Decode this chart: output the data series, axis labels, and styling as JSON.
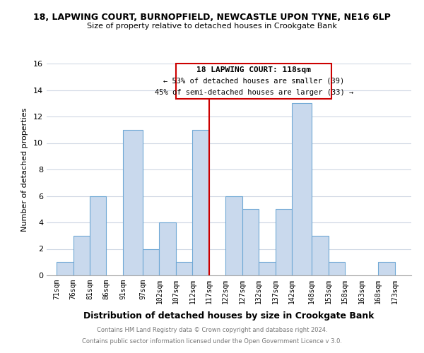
{
  "title1": "18, LAPWING COURT, BURNOPFIELD, NEWCASTLE UPON TYNE, NE16 6LP",
  "title2": "Size of property relative to detached houses in Crookgate Bank",
  "xlabel": "Distribution of detached houses by size in Crookgate Bank",
  "ylabel": "Number of detached properties",
  "footer1": "Contains HM Land Registry data © Crown copyright and database right 2024.",
  "footer2": "Contains public sector information licensed under the Open Government Licence v 3.0.",
  "annotation_title": "18 LAPWING COURT: 118sqm",
  "annotation_line1": "← 53% of detached houses are smaller (39)",
  "annotation_line2": "45% of semi-detached houses are larger (33) →",
  "subject_line_x": 117,
  "bar_edges": [
    71,
    76,
    81,
    86,
    91,
    97,
    102,
    107,
    112,
    117,
    122,
    127,
    132,
    137,
    142,
    148,
    153,
    158,
    163,
    168,
    173,
    178
  ],
  "bar_heights": [
    1,
    3,
    6,
    0,
    11,
    2,
    4,
    1,
    11,
    0,
    6,
    5,
    1,
    5,
    13,
    3,
    1,
    0,
    0,
    1,
    0
  ],
  "bar_color": "#c9d9ed",
  "bar_edge_color": "#6fa8d5",
  "subject_line_color": "#cc0000",
  "box_edge_color": "#cc0000",
  "bg_color": "#ffffff",
  "grid_color": "#d0d8e4",
  "ylim": [
    0,
    16
  ],
  "xlim": [
    68,
    178
  ],
  "yticks": [
    0,
    2,
    4,
    6,
    8,
    10,
    12,
    14,
    16
  ],
  "tick_labels": [
    "71sqm",
    "76sqm",
    "81sqm",
    "86sqm",
    "91sqm",
    "97sqm",
    "102sqm",
    "107sqm",
    "112sqm",
    "117sqm",
    "122sqm",
    "127sqm",
    "132sqm",
    "137sqm",
    "142sqm",
    "148sqm",
    "153sqm",
    "158sqm",
    "163sqm",
    "168sqm",
    "173sqm"
  ],
  "tick_positions": [
    71,
    76,
    81,
    86,
    91,
    97,
    102,
    107,
    112,
    117,
    122,
    127,
    132,
    137,
    142,
    148,
    153,
    158,
    163,
    168,
    173
  ]
}
